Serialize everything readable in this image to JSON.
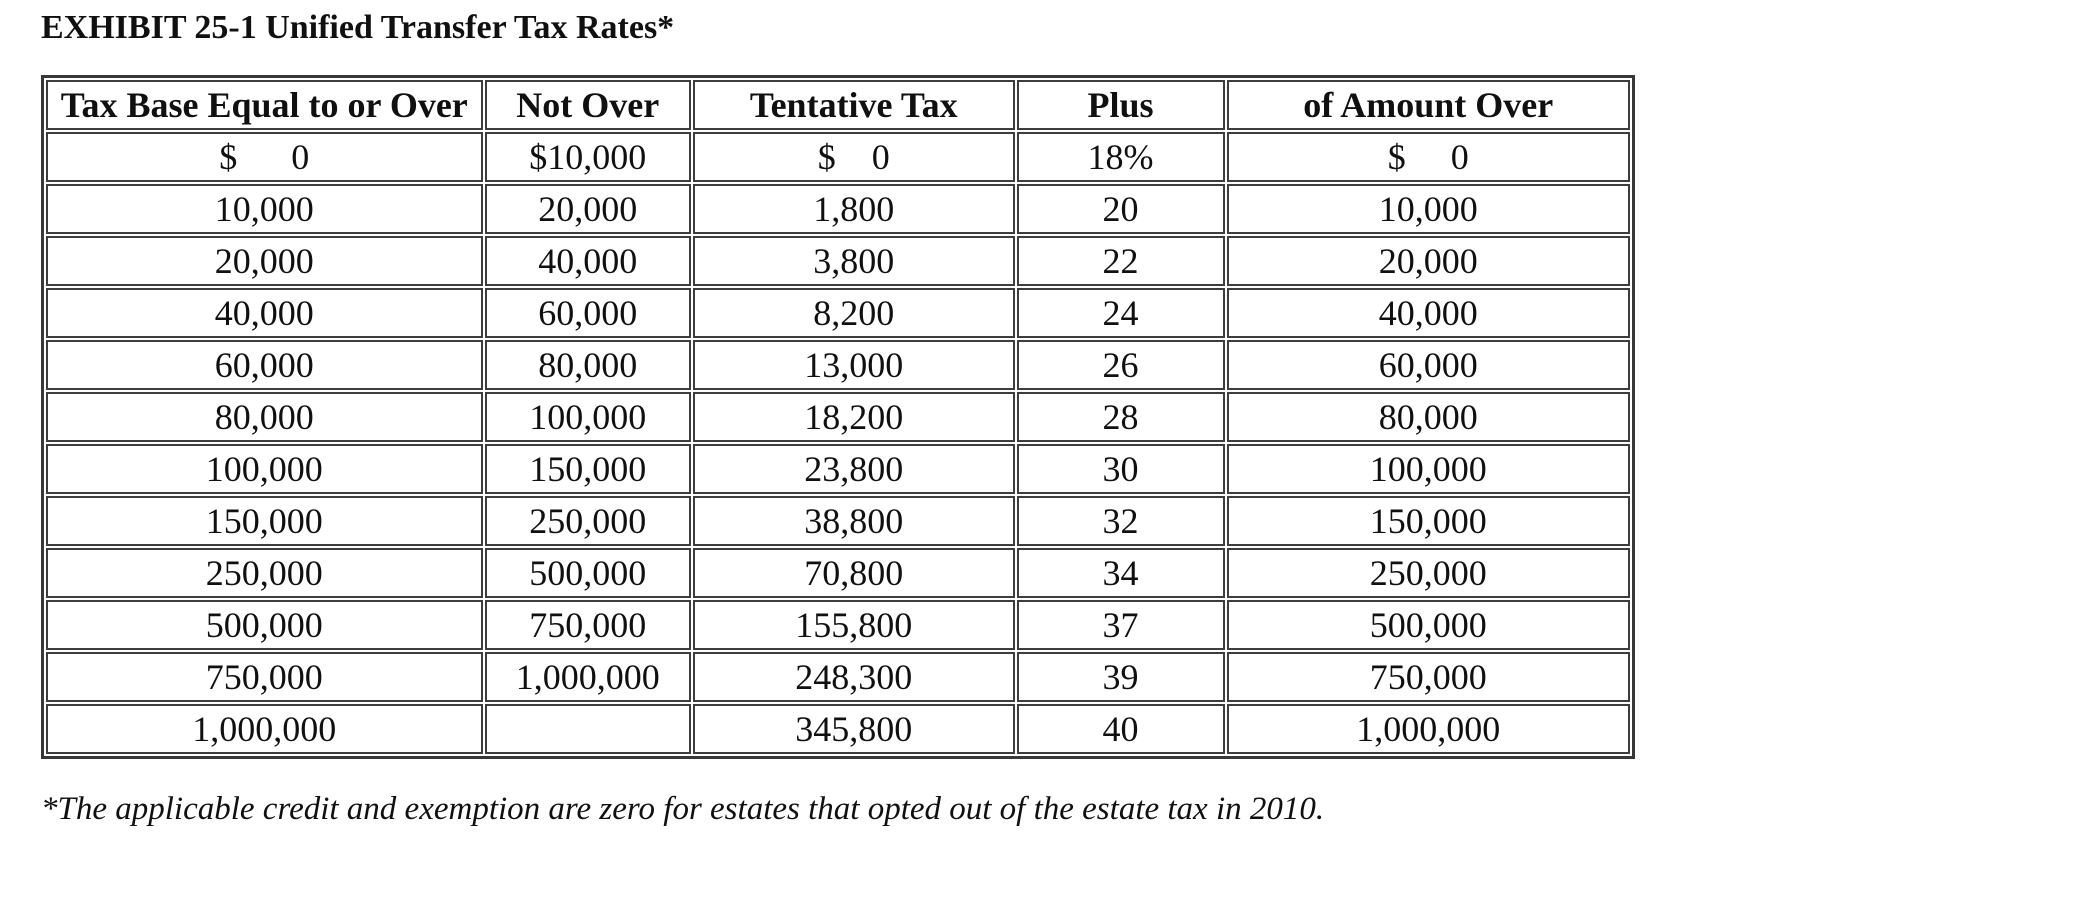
{
  "page": {
    "title": "EXHIBIT 25-1 Unified Transfer Tax Rates*",
    "footnote": "*The applicable credit and exemption are zero for estates that opted out of the estate tax in 2010."
  },
  "table": {
    "columns": [
      "Tax Base Equal to or Over",
      "Not Over",
      "Tentative Tax",
      "Plus",
      "of Amount Over"
    ],
    "rows": [
      [
        "$      0",
        "$10,000",
        "$    0",
        "18%",
        "$     0"
      ],
      [
        "10,000",
        "20,000",
        "1,800",
        "20",
        "10,000"
      ],
      [
        "20,000",
        "40,000",
        "3,800",
        "22",
        "20,000"
      ],
      [
        "40,000",
        "60,000",
        "8,200",
        "24",
        "40,000"
      ],
      [
        "60,000",
        "80,000",
        "13,000",
        "26",
        "60,000"
      ],
      [
        "80,000",
        "100,000",
        "18,200",
        "28",
        "80,000"
      ],
      [
        "100,000",
        "150,000",
        "23,800",
        "30",
        "100,000"
      ],
      [
        "150,000",
        "250,000",
        "38,800",
        "32",
        "150,000"
      ],
      [
        "250,000",
        "500,000",
        "70,800",
        "34",
        "250,000"
      ],
      [
        "500,000",
        "750,000",
        "155,800",
        "37",
        "500,000"
      ],
      [
        "750,000",
        "1,000,000",
        "248,300",
        "39",
        "750,000"
      ],
      [
        "1,000,000",
        "",
        "345,800",
        "40",
        "1,000,000"
      ]
    ]
  },
  "colors": {
    "background": "#ffffff",
    "text": "#101010",
    "border": "#3d3d3d",
    "border-outer": "#383838"
  }
}
